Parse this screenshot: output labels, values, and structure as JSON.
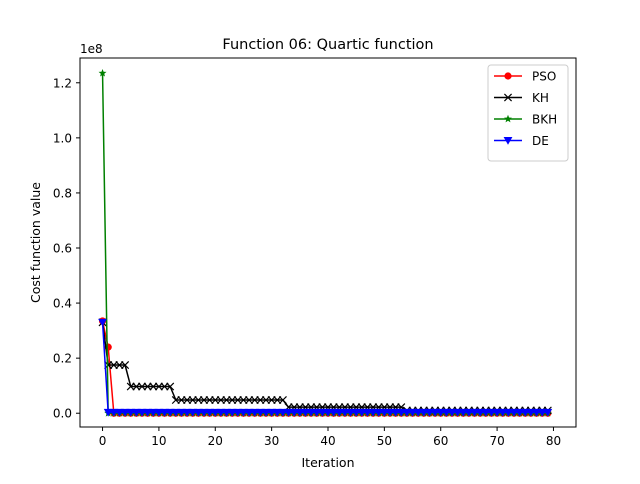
{
  "chart_data": {
    "type": "line",
    "title": "Function 06: Quartic function",
    "xlabel": "Iteration",
    "ylabel": "Cost function value",
    "y_scale_label": "1e8",
    "xlim": [
      -4,
      84
    ],
    "ylim": [
      -0.05,
      1.29
    ],
    "y_unit_scale": 100000000,
    "x_ticks": [
      0,
      10,
      20,
      30,
      40,
      50,
      60,
      70,
      80
    ],
    "x_tick_labels": [
      "0",
      "10",
      "20",
      "30",
      "40",
      "50",
      "60",
      "70",
      "80"
    ],
    "y_ticks": [
      0.0,
      0.2,
      0.4,
      0.6,
      0.8,
      1.0,
      1.2
    ],
    "y_tick_labels": [
      "0.0",
      "0.2",
      "0.4",
      "0.6",
      "0.8",
      "1.0",
      "1.2"
    ],
    "legend_position": "top-right",
    "grid": false,
    "series": [
      {
        "name": "PSO",
        "color": "#ff0000",
        "marker": "circle",
        "segments": [
          {
            "from": 0,
            "to": 0,
            "value": 0.335
          },
          {
            "from": 1,
            "to": 1,
            "value": 0.24
          },
          {
            "from": 2,
            "to": 79,
            "value": 0.0
          }
        ]
      },
      {
        "name": "KH",
        "color": "#000000",
        "marker": "x",
        "segments": [
          {
            "from": 0,
            "to": 0,
            "value": 0.33
          },
          {
            "from": 1,
            "to": 4,
            "value": 0.175
          },
          {
            "from": 5,
            "to": 12,
            "value": 0.097
          },
          {
            "from": 13,
            "to": 32,
            "value": 0.048
          },
          {
            "from": 33,
            "to": 53,
            "value": 0.022
          },
          {
            "from": 54,
            "to": 79,
            "value": 0.01
          }
        ]
      },
      {
        "name": "BKH",
        "color": "#008000",
        "marker": "star",
        "segments": [
          {
            "from": 0,
            "to": 0,
            "value": 1.235
          },
          {
            "from": 1,
            "to": 79,
            "value": 0.0
          }
        ]
      },
      {
        "name": "DE",
        "color": "#0000ff",
        "marker": "triangle-down",
        "segments": [
          {
            "from": 0,
            "to": 0,
            "value": 0.33
          },
          {
            "from": 1,
            "to": 79,
            "value": 0.003
          }
        ]
      }
    ]
  }
}
